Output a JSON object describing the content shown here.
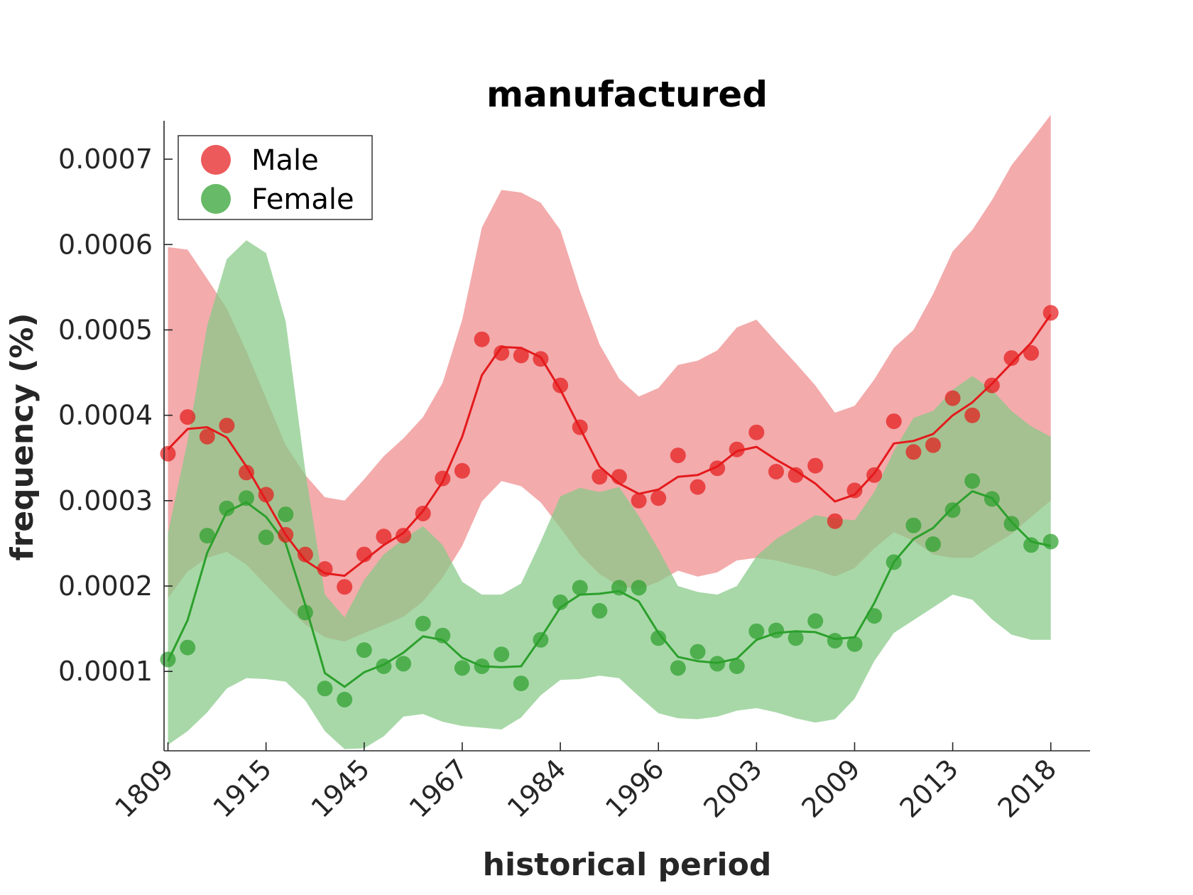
{
  "chart_data": {
    "type": "line",
    "title": "manufactured",
    "xlabel": "historical period",
    "ylabel": "frequency (%)",
    "x_tick_labels": [
      "1809",
      "1915",
      "1945",
      "1967",
      "1984",
      "1996",
      "2003",
      "2009",
      "2013",
      "2018"
    ],
    "y_tick_labels": [
      "0.0001",
      "0.0002",
      "0.0003",
      "0.0004",
      "0.0005",
      "0.0006",
      "0.0007"
    ],
    "y_ticks": [
      0.0001,
      0.0002,
      0.0003,
      0.0004,
      0.0005,
      0.0006,
      0.0007
    ],
    "x_index_range": [
      -0.2,
      47.0
    ],
    "ylim": [
      7e-06,
      0.000745
    ],
    "grid": false,
    "legend_position": "top-left",
    "series": [
      {
        "name": "Male",
        "color": "#e41a1c",
        "band_color": "#ee8a8c",
        "points": [
          0.000355,
          0.000398,
          0.000375,
          0.000388,
          0.000333,
          0.000307,
          0.00026,
          0.000237,
          0.00022,
          0.000199,
          0.000237,
          0.000258,
          0.000259,
          0.000285,
          0.000326,
          0.000335,
          0.000489,
          0.000473,
          0.00047,
          0.000466,
          0.000435,
          0.000386,
          0.000328,
          0.000328,
          0.0003,
          0.000303,
          0.000353,
          0.000316,
          0.000338,
          0.00036,
          0.00038,
          0.000334,
          0.00033,
          0.000341,
          0.000276,
          0.000312,
          0.00033,
          0.000393,
          0.000357,
          0.000365,
          0.00042,
          0.0004,
          0.000435,
          0.000467,
          0.000473,
          0.00052
        ],
        "line": [
          0.00036,
          0.000384,
          0.000386,
          0.000374,
          0.00034,
          0.0003,
          0.00026,
          0.00023,
          0.000215,
          0.000212,
          0.00023,
          0.000248,
          0.000262,
          0.000288,
          0.000322,
          0.000375,
          0.000447,
          0.00048,
          0.000479,
          0.000468,
          0.00043,
          0.000385,
          0.00034,
          0.00032,
          0.000308,
          0.000313,
          0.000328,
          0.00033,
          0.00034,
          0.000358,
          0.000363,
          0.000348,
          0.000335,
          0.00032,
          0.000299,
          0.000307,
          0.000332,
          0.000367,
          0.00037,
          0.000378,
          0.0004,
          0.000415,
          0.000437,
          0.000461,
          0.000485,
          0.000518
        ],
        "upper": [
          0.000597,
          0.000594,
          0.00056,
          0.000525,
          0.000475,
          0.00042,
          0.000365,
          0.00033,
          0.000304,
          0.0003,
          0.000325,
          0.000352,
          0.000373,
          0.000398,
          0.000438,
          0.000512,
          0.00062,
          0.000664,
          0.000661,
          0.000649,
          0.000617,
          0.000545,
          0.000483,
          0.000443,
          0.000422,
          0.000432,
          0.000459,
          0.000464,
          0.000476,
          0.000503,
          0.000512,
          0.000486,
          0.000461,
          0.000435,
          0.000403,
          0.000411,
          0.000442,
          0.000479,
          0.0005,
          0.000542,
          0.000592,
          0.000617,
          0.000652,
          0.000693,
          0.000722,
          0.000752
        ],
        "lower": [
          0.000186,
          0.000217,
          0.000233,
          0.00024,
          0.000225,
          0.000201,
          0.000177,
          0.000155,
          0.00014,
          0.000135,
          0.000145,
          0.000154,
          0.000164,
          0.000182,
          0.00021,
          0.000247,
          0.000299,
          0.000323,
          0.000317,
          0.000298,
          0.000268,
          0.000237,
          0.000214,
          0.0002,
          0.000196,
          0.000205,
          0.000218,
          0.000211,
          0.000216,
          0.00023,
          0.000233,
          0.00023,
          0.000224,
          0.000219,
          0.000211,
          0.000221,
          0.000244,
          0.000263,
          0.000253,
          0.000237,
          0.000233,
          0.000233,
          0.000247,
          0.000261,
          0.000281,
          0.0003
        ]
      },
      {
        "name": "Female",
        "color": "#2ca02c",
        "band_color": "#87c987",
        "points": [
          0.000114,
          0.000128,
          0.000259,
          0.000291,
          0.000303,
          0.000257,
          0.000284,
          0.000169,
          8e-05,
          6.7e-05,
          0.000125,
          0.000106,
          0.000109,
          0.000156,
          0.000142,
          0.000104,
          0.000106,
          0.00012,
          8.6e-05,
          0.000137,
          0.000181,
          0.000198,
          0.000171,
          0.000198,
          0.000198,
          0.000139,
          0.000104,
          0.000123,
          0.000109,
          0.000106,
          0.000147,
          0.000148,
          0.000139,
          0.000159,
          0.000136,
          0.000132,
          0.000165,
          0.000228,
          0.000271,
          0.000249,
          0.000289,
          0.000323,
          0.000302,
          0.000273,
          0.000248,
          0.000252
        ],
        "line": [
          0.000112,
          0.00016,
          0.000239,
          0.000287,
          0.000298,
          0.000281,
          0.00025,
          0.000178,
          9.8e-05,
          8.2e-05,
          9.9e-05,
          0.000108,
          0.000122,
          0.000141,
          0.000137,
          0.000116,
          0.000106,
          0.000105,
          0.000106,
          0.000139,
          0.000175,
          0.00019,
          0.000191,
          0.000194,
          0.000182,
          0.000145,
          0.000117,
          0.000112,
          0.00011,
          0.000115,
          0.000137,
          0.000145,
          0.000147,
          0.000146,
          0.000138,
          0.00014,
          0.00018,
          0.000228,
          0.000255,
          0.000268,
          0.000292,
          0.000311,
          0.000303,
          0.000275,
          0.000252,
          0.000247
        ],
        "upper": [
          0.000262,
          0.00037,
          0.000505,
          0.000583,
          0.000605,
          0.00059,
          0.00051,
          0.000335,
          0.00019,
          0.000163,
          0.000207,
          0.000237,
          0.000255,
          0.00027,
          0.000248,
          0.000205,
          0.00019,
          0.00019,
          0.000203,
          0.000252,
          0.000305,
          0.000315,
          0.00031,
          0.000316,
          0.000282,
          0.000243,
          0.0002,
          0.000193,
          0.00019,
          0.0002,
          0.000235,
          0.000255,
          0.000269,
          0.000283,
          0.000279,
          0.000277,
          0.00031,
          0.000358,
          0.000397,
          0.000405,
          0.00043,
          0.000446,
          0.00043,
          0.000405,
          0.000387,
          0.000375
        ],
        "lower": [
          1.4e-05,
          3e-05,
          5.2e-05,
          8e-05,
          9.2e-05,
          9.1e-05,
          8.8e-05,
          6.6e-05,
          3e-05,
          9e-06,
          1e-05,
          2.4e-05,
          4.7e-05,
          5e-05,
          4.1e-05,
          3.6e-05,
          3.4e-05,
          3.2e-05,
          4.6e-05,
          7.2e-05,
          9e-05,
          9.1e-05,
          9.5e-05,
          9.2e-05,
          7.1e-05,
          5.1e-05,
          4.5e-05,
          4.4e-05,
          4.7e-05,
          5.4e-05,
          5.7e-05,
          5.2e-05,
          4.5e-05,
          4e-05,
          4.4e-05,
          6.8e-05,
          0.000112,
          0.000145,
          0.00016,
          0.000175,
          0.00019,
          0.000184,
          0.000161,
          0.000143,
          0.000137,
          0.000137
        ]
      }
    ]
  }
}
